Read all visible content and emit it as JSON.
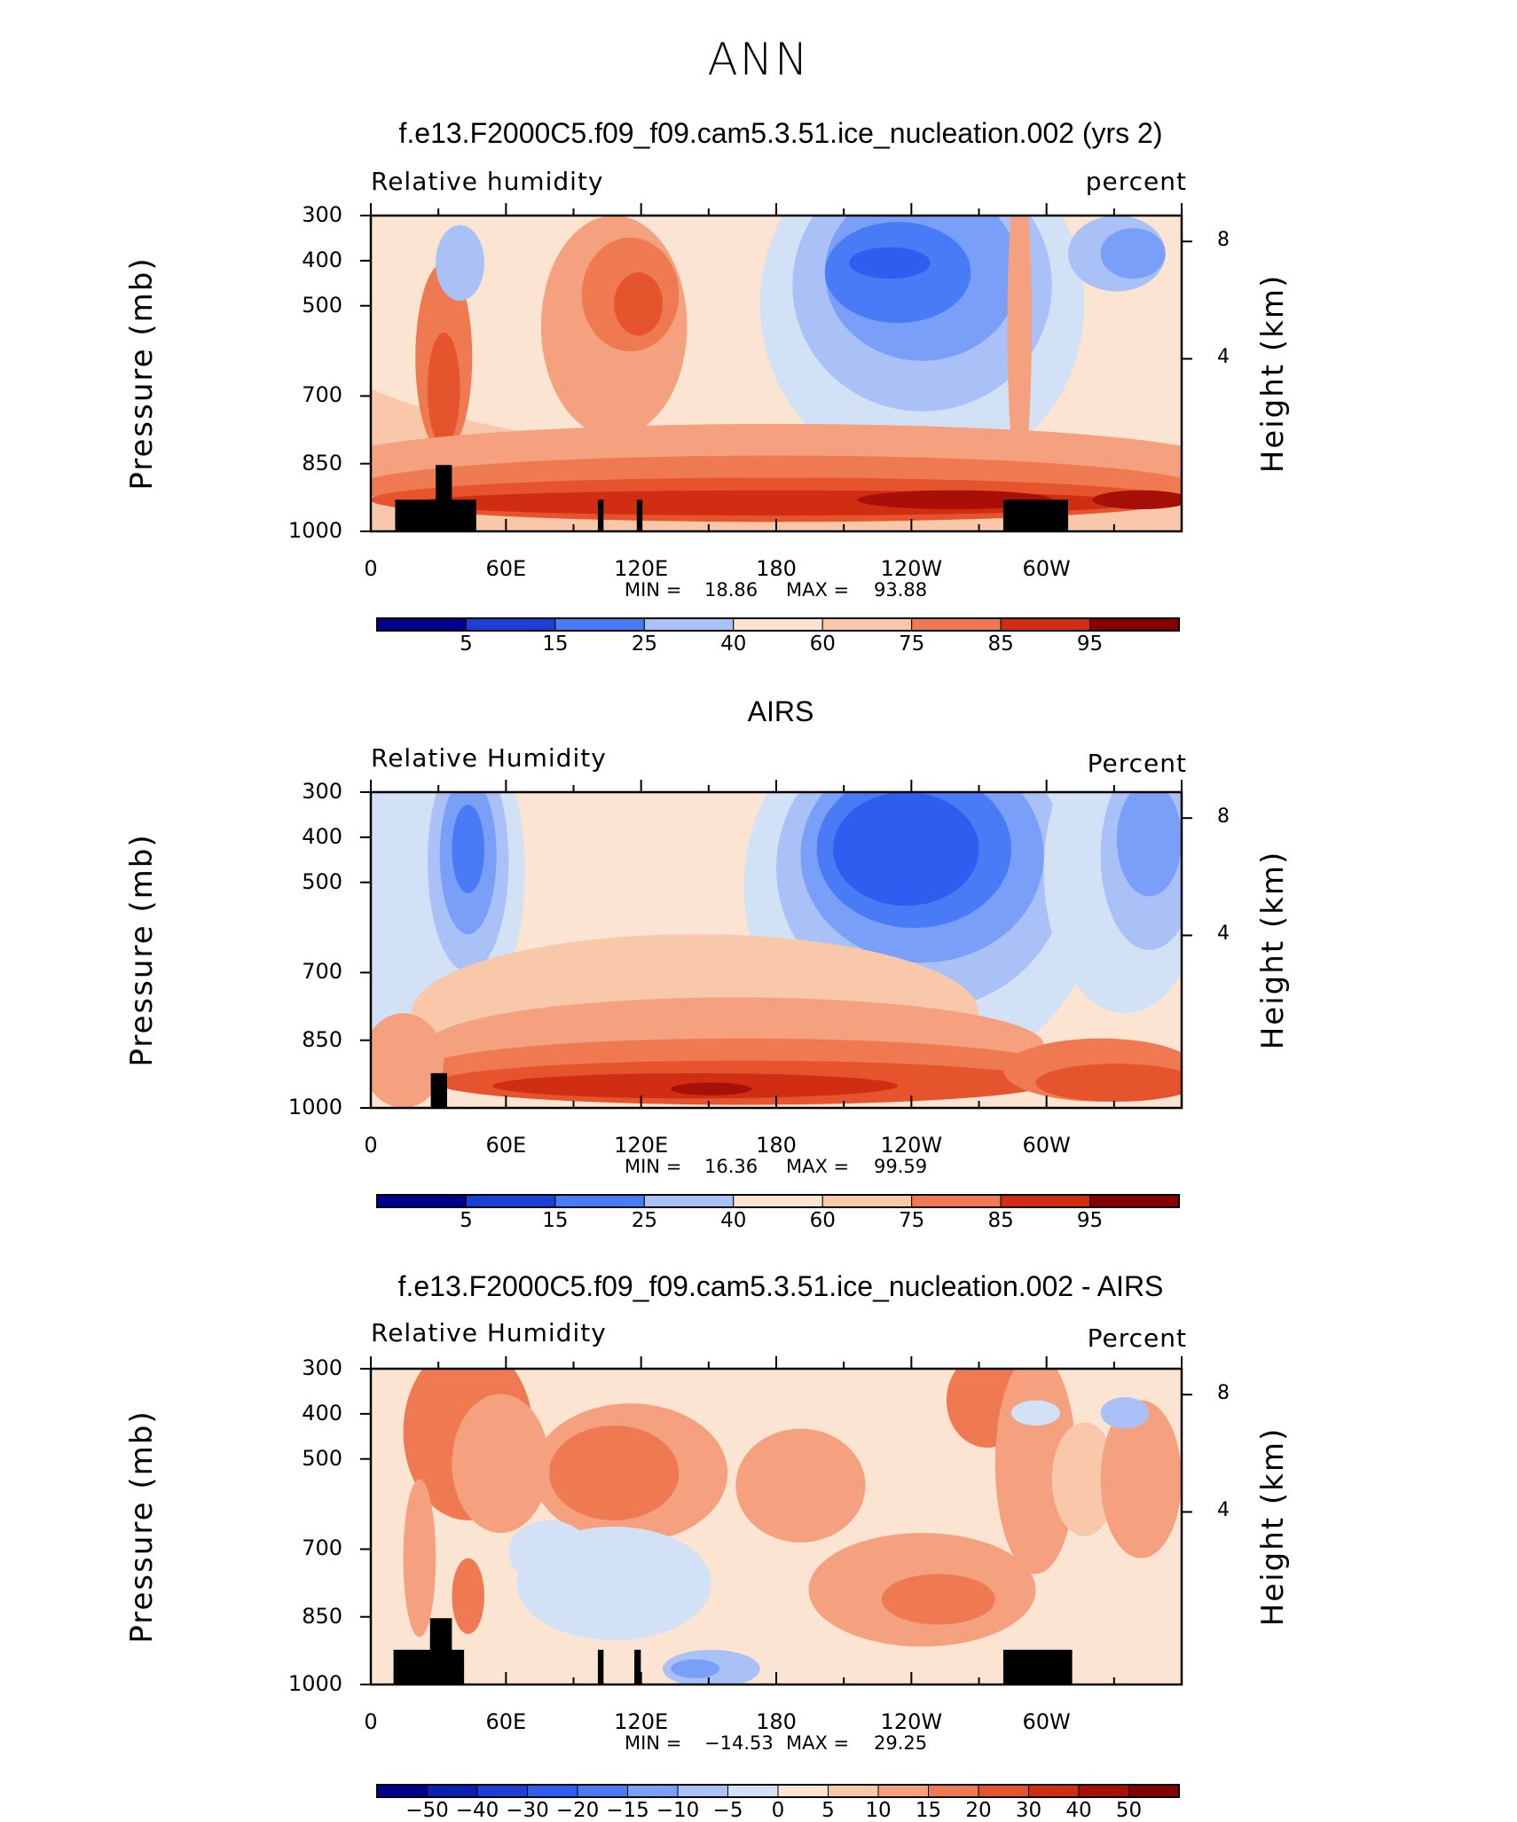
{
  "figure_title": "ANN",
  "chart_data": [
    {
      "type": "heatmap",
      "title": "f.e13.F2000C5.f09_f09.cam5.3.51.ice_nucleation.002 (yrs 2)",
      "variable": "Relative  humidity",
      "units": "percent",
      "ylabel": "Pressure  (mb)",
      "ylabel_right": "Height  (km)",
      "x_ticks": [
        "0",
        "60E",
        "120E",
        "180",
        "120W",
        "60W"
      ],
      "y_ticks": [
        "300",
        "400",
        "500",
        "700",
        "850",
        "1000"
      ],
      "y_ticks_right": [
        "8",
        "4"
      ],
      "ylim": [
        1000,
        300
      ],
      "xlim": [
        0,
        360
      ],
      "min": "18.86",
      "max": "93.88",
      "min_label": "MIN =",
      "max_label": "MAX =",
      "colorbar_labels": [
        "5",
        "15",
        "25",
        "40",
        "60",
        "75",
        "85",
        "95"
      ]
    },
    {
      "type": "heatmap",
      "title": "AIRS",
      "variable": "Relative  Humidity",
      "units": "Percent",
      "ylabel": "Pressure  (mb)",
      "ylabel_right": "Height  (km)",
      "x_ticks": [
        "0",
        "60E",
        "120E",
        "180",
        "120W",
        "60W"
      ],
      "y_ticks": [
        "300",
        "400",
        "500",
        "700",
        "850",
        "1000"
      ],
      "y_ticks_right": [
        "8",
        "4"
      ],
      "ylim": [
        1000,
        300
      ],
      "xlim": [
        0,
        360
      ],
      "min": "16.36",
      "max": "99.59",
      "min_label": "MIN =",
      "max_label": "MAX =",
      "colorbar_labels": [
        "5",
        "15",
        "25",
        "40",
        "60",
        "75",
        "85",
        "95"
      ]
    },
    {
      "type": "heatmap",
      "title": "f.e13.F2000C5.f09_f09.cam5.3.51.ice_nucleation.002 - AIRS",
      "variable": "Relative  Humidity",
      "units": "Percent",
      "ylabel": "Pressure  (mb)",
      "ylabel_right": "Height  (km)",
      "x_ticks": [
        "0",
        "60E",
        "120E",
        "180",
        "120W",
        "60W"
      ],
      "y_ticks": [
        "300",
        "400",
        "500",
        "700",
        "850",
        "1000"
      ],
      "y_ticks_right": [
        "8",
        "4"
      ],
      "ylim": [
        1000,
        300
      ],
      "xlim": [
        0,
        360
      ],
      "min": "−14.53",
      "max": "29.25",
      "min_label": "MIN =",
      "max_label": "MAX =",
      "colorbar_labels": [
        "−50",
        "−40",
        "−30",
        "−20",
        "−15",
        "−10",
        "−5",
        "0",
        "5",
        "10",
        "15",
        "20",
        "30",
        "40",
        "50"
      ]
    }
  ],
  "colors": {
    "palette": [
      "#00008b",
      "#0a1fb4",
      "#1e3fd6",
      "#2d5ef0",
      "#4a7bf7",
      "#7a9ff9",
      "#a9c1f7",
      "#d3e1f6",
      "#fbe4d2",
      "#f9c8ab",
      "#f5a07e",
      "#ef7a52",
      "#e6542e",
      "#d02d12",
      "#a80f06",
      "#850000"
    ],
    "topography": "#000000"
  }
}
